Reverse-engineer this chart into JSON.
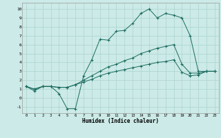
{
  "xlabel": "Humidex (Indice chaleur)",
  "bg_color": "#cceae7",
  "grid_color": "#aad4d0",
  "line_color": "#1a6b5e",
  "xlim": [
    -0.5,
    23.5
  ],
  "ylim": [
    -1.7,
    10.7
  ],
  "xticks": [
    0,
    1,
    2,
    3,
    4,
    5,
    6,
    7,
    8,
    9,
    10,
    11,
    12,
    13,
    14,
    15,
    16,
    17,
    18,
    19,
    20,
    21,
    22,
    23
  ],
  "yticks": [
    -1,
    0,
    1,
    2,
    3,
    4,
    5,
    6,
    7,
    8,
    9,
    10
  ],
  "lines": [
    {
      "x": [
        0,
        1,
        2,
        3,
        4,
        5,
        6,
        7,
        8,
        9,
        10,
        11,
        12,
        13,
        14,
        15,
        16,
        17,
        18,
        19,
        20,
        21,
        22,
        23
      ],
      "y": [
        1.3,
        0.8,
        1.3,
        1.3,
        0.5,
        -1.2,
        -1.2,
        2.5,
        4.3,
        6.6,
        6.5,
        7.5,
        7.6,
        8.4,
        9.5,
        10.0,
        9.0,
        9.5,
        9.3,
        9.0,
        7.0,
        3.0,
        3.0,
        3.0
      ]
    },
    {
      "x": [
        0,
        1,
        2,
        3,
        4,
        5,
        6,
        7,
        8,
        9,
        10,
        11,
        12,
        13,
        14,
        15,
        16,
        17,
        18,
        19,
        20,
        21,
        22,
        23
      ],
      "y": [
        1.3,
        1.0,
        1.3,
        1.3,
        1.2,
        1.2,
        1.5,
        2.0,
        2.5,
        3.0,
        3.5,
        3.8,
        4.2,
        4.5,
        5.0,
        5.3,
        5.6,
        5.8,
        6.0,
        3.8,
        2.8,
        2.8,
        3.0,
        3.0
      ]
    },
    {
      "x": [
        0,
        1,
        2,
        3,
        4,
        5,
        6,
        7,
        8,
        9,
        10,
        11,
        12,
        13,
        14,
        15,
        16,
        17,
        18,
        19,
        20,
        21,
        22,
        23
      ],
      "y": [
        1.3,
        1.0,
        1.3,
        1.3,
        1.2,
        1.2,
        1.5,
        1.8,
        2.1,
        2.5,
        2.8,
        3.0,
        3.2,
        3.4,
        3.6,
        3.8,
        4.0,
        4.1,
        4.3,
        2.9,
        2.5,
        2.6,
        3.0,
        3.0
      ]
    }
  ]
}
